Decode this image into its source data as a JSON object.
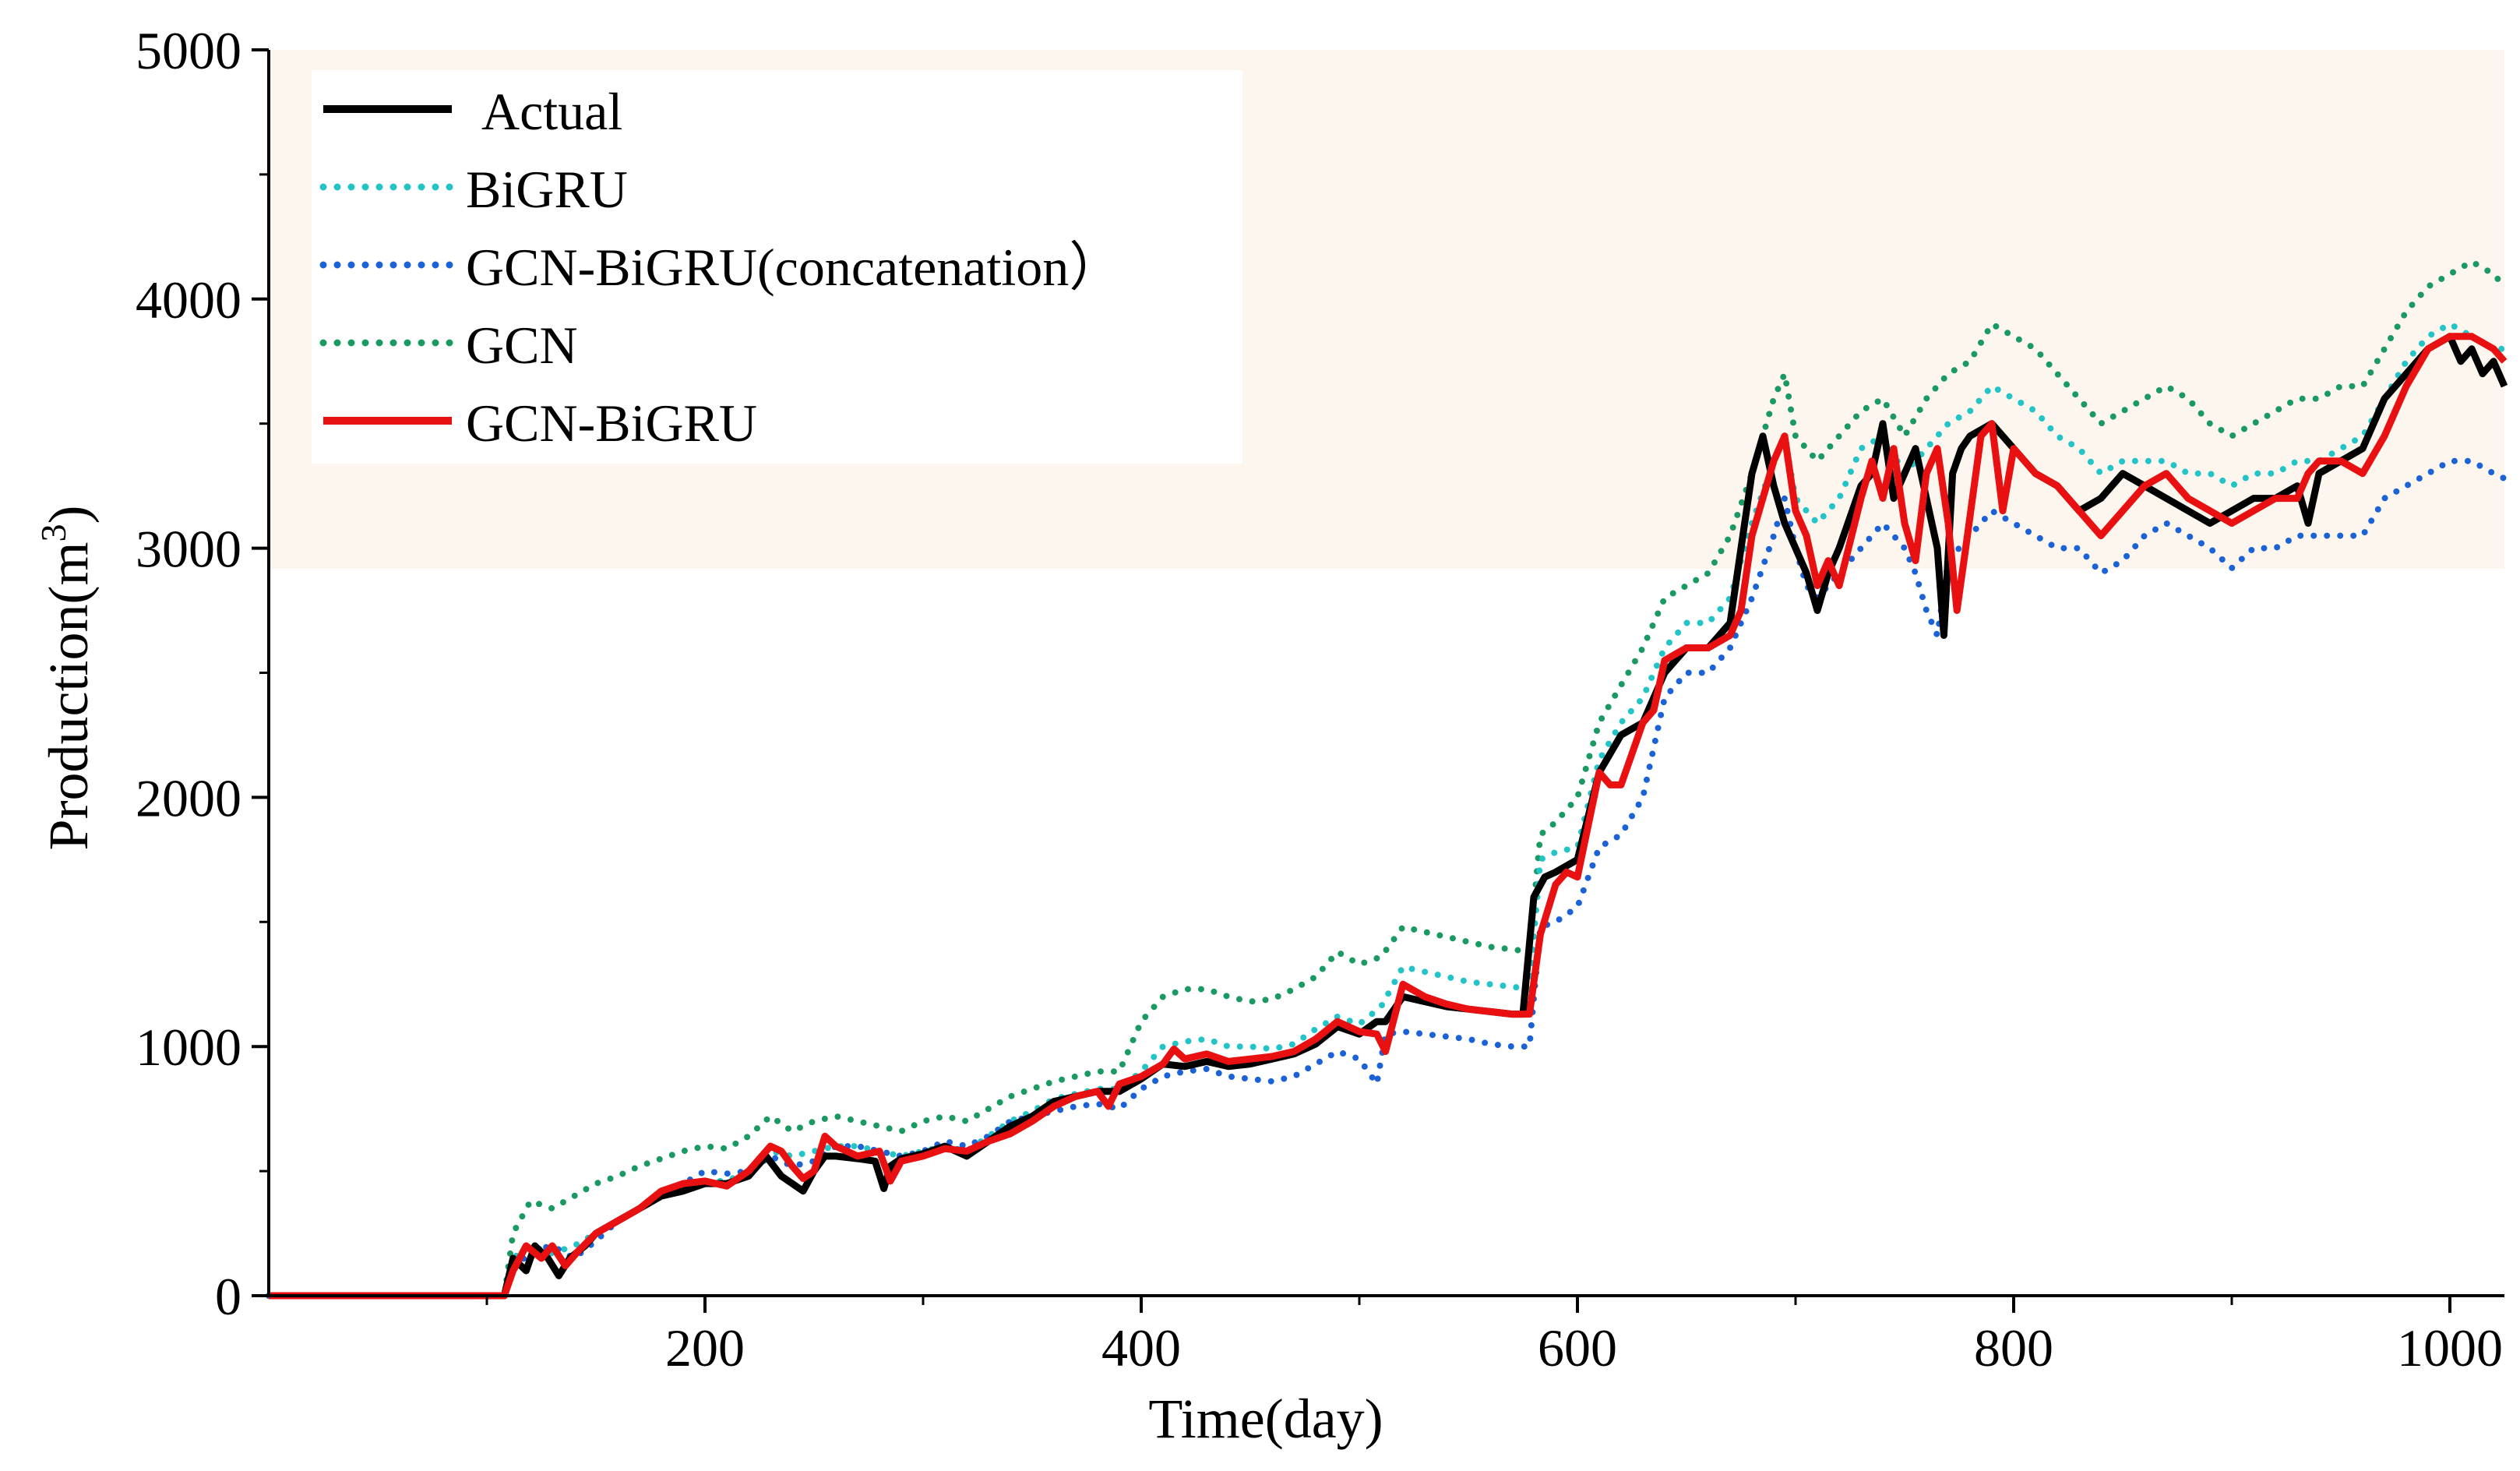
{
  "chart_data": {
    "type": "line",
    "title": "",
    "xlabel": "Time(day)",
    "ylabel_main": "Production(m",
    "ylabel_sup": "3",
    "ylabel_close": ")",
    "xlim": [
      0,
      1025
    ],
    "ylim": [
      0,
      5000
    ],
    "xticks": [
      200,
      400,
      600,
      800,
      1000
    ],
    "yticks": [
      0,
      1000,
      2000,
      3000,
      4000,
      5000
    ],
    "grid": false,
    "legend_position": "top-left",
    "series": [
      {
        "name": "Actual",
        "color": "#000000",
        "style": "solid",
        "x": [
          0,
          100,
          108,
          112,
          118,
          122,
          128,
          133,
          138,
          145,
          150,
          160,
          170,
          180,
          190,
          200,
          210,
          220,
          228,
          235,
          240,
          245,
          250,
          255,
          260,
          270,
          278,
          282,
          285,
          290,
          300,
          310,
          320,
          330,
          340,
          350,
          360,
          370,
          380,
          390,
          400,
          410,
          420,
          430,
          440,
          450,
          460,
          470,
          480,
          490,
          500,
          508,
          512,
          520,
          530,
          540,
          550,
          560,
          570,
          575,
          580,
          585,
          590,
          600,
          610,
          620,
          630,
          640,
          650,
          660,
          670,
          675,
          680,
          685,
          690,
          695,
          700,
          705,
          710,
          715,
          720,
          730,
          735,
          740,
          745,
          750,
          755,
          760,
          765,
          768,
          772,
          776,
          780,
          790,
          800,
          810,
          820,
          830,
          840,
          845,
          850,
          860,
          870,
          880,
          890,
          900,
          910,
          920,
          930,
          935,
          940,
          950,
          960,
          970,
          980,
          990,
          1000,
          1005,
          1010,
          1015,
          1020,
          1025
        ],
        "values": [
          0,
          0,
          0,
          150,
          100,
          200,
          150,
          80,
          150,
          200,
          250,
          300,
          350,
          400,
          420,
          450,
          450,
          480,
          560,
          480,
          450,
          420,
          500,
          560,
          560,
          550,
          540,
          430,
          520,
          550,
          570,
          600,
          560,
          620,
          680,
          720,
          780,
          800,
          820,
          820,
          870,
          930,
          920,
          940,
          920,
          930,
          950,
          970,
          1010,
          1080,
          1050,
          1100,
          1100,
          1200,
          1180,
          1160,
          1150,
          1140,
          1130,
          1130,
          1600,
          1680,
          1700,
          1750,
          2100,
          2250,
          2300,
          2500,
          2600,
          2600,
          2700,
          3000,
          3300,
          3450,
          3250,
          3100,
          3000,
          2900,
          2750,
          2900,
          3000,
          3250,
          3300,
          3500,
          3200,
          3300,
          3400,
          3200,
          3000,
          2650,
          3300,
          3400,
          3450,
          3500,
          3400,
          3300,
          3250,
          3150,
          3200,
          3250,
          3300,
          3250,
          3200,
          3150,
          3100,
          3150,
          3200,
          3200,
          3250,
          3100,
          3300,
          3350,
          3400,
          3600,
          3700,
          3800,
          3850,
          3750,
          3800,
          3700,
          3750,
          3650
        ]
      },
      {
        "name": "BiGRU",
        "color": "#22c4c8",
        "style": "dotted",
        "x": [
          0,
          100,
          108,
          112,
          120,
          130,
          140,
          150,
          160,
          170,
          180,
          190,
          200,
          210,
          220,
          230,
          240,
          250,
          260,
          270,
          280,
          290,
          300,
          310,
          320,
          330,
          340,
          350,
          360,
          370,
          380,
          390,
          400,
          410,
          420,
          430,
          440,
          450,
          460,
          470,
          480,
          490,
          500,
          510,
          520,
          530,
          540,
          550,
          560,
          570,
          578,
          583,
          590,
          600,
          610,
          620,
          630,
          640,
          650,
          660,
          670,
          680,
          690,
          695,
          700,
          710,
          720,
          730,
          740,
          750,
          760,
          770,
          780,
          790,
          800,
          810,
          820,
          830,
          840,
          850,
          860,
          870,
          880,
          890,
          900,
          910,
          920,
          930,
          940,
          950,
          960,
          970,
          980,
          990,
          1000,
          1010,
          1020,
          1025
        ],
        "values": [
          0,
          0,
          0,
          150,
          200,
          170,
          200,
          250,
          300,
          350,
          400,
          430,
          460,
          460,
          500,
          580,
          560,
          580,
          600,
          600,
          580,
          560,
          580,
          600,
          580,
          640,
          700,
          740,
          790,
          810,
          830,
          830,
          900,
          1000,
          1020,
          1030,
          1000,
          1000,
          990,
          1010,
          1070,
          1120,
          1090,
          1160,
          1320,
          1300,
          1280,
          1260,
          1250,
          1240,
          1230,
          1750,
          1780,
          1800,
          2150,
          2300,
          2400,
          2600,
          2700,
          2700,
          2800,
          3100,
          3350,
          3450,
          3200,
          3100,
          3200,
          3400,
          3450,
          3300,
          3400,
          3500,
          3550,
          3650,
          3600,
          3550,
          3450,
          3400,
          3300,
          3350,
          3350,
          3350,
          3300,
          3300,
          3250,
          3300,
          3300,
          3350,
          3350,
          3400,
          3450,
          3600,
          3750,
          3850,
          3900,
          3850,
          3800,
          3800
        ]
      },
      {
        "name": "GCN-BiGRU(concatenation）",
        "color": "#1a62d6",
        "style": "dotted",
        "x": [
          0,
          100,
          108,
          112,
          120,
          130,
          140,
          150,
          160,
          170,
          180,
          190,
          200,
          210,
          220,
          230,
          240,
          250,
          260,
          270,
          280,
          290,
          300,
          310,
          320,
          330,
          340,
          350,
          360,
          370,
          380,
          390,
          400,
          410,
          420,
          430,
          440,
          450,
          460,
          470,
          480,
          490,
          500,
          508,
          512,
          520,
          530,
          540,
          550,
          560,
          570,
          578,
          583,
          590,
          600,
          610,
          620,
          630,
          640,
          650,
          660,
          670,
          680,
          690,
          695,
          700,
          705,
          710,
          720,
          730,
          740,
          750,
          755,
          760,
          765,
          770,
          780,
          790,
          800,
          810,
          820,
          830,
          840,
          850,
          860,
          870,
          880,
          890,
          900,
          910,
          920,
          930,
          940,
          950,
          960,
          970,
          980,
          990,
          1000,
          1010,
          1020,
          1025
        ],
        "values": [
          0,
          0,
          0,
          100,
          180,
          200,
          150,
          220,
          300,
          350,
          400,
          450,
          500,
          490,
          500,
          560,
          520,
          540,
          600,
          600,
          580,
          560,
          580,
          620,
          600,
          640,
          700,
          720,
          740,
          760,
          770,
          750,
          830,
          880,
          900,
          910,
          880,
          870,
          860,
          880,
          930,
          980,
          950,
          850,
          1050,
          1060,
          1050,
          1040,
          1030,
          1010,
          1000,
          1000,
          1480,
          1500,
          1560,
          1800,
          1850,
          2000,
          2400,
          2500,
          2500,
          2600,
          2800,
          3050,
          3200,
          3000,
          2850,
          2800,
          2900,
          3000,
          3100,
          3000,
          2900,
          2750,
          2650,
          2950,
          3050,
          3150,
          3100,
          3050,
          3000,
          3000,
          2900,
          2950,
          3050,
          3100,
          3050,
          3000,
          2920,
          3000,
          3000,
          3050,
          3050,
          3050,
          3050,
          3200,
          3250,
          3300,
          3350,
          3350,
          3300,
          3280
        ]
      },
      {
        "name": "GCN",
        "color": "#1a9a62",
        "style": "dotted",
        "x": [
          0,
          100,
          108,
          112,
          120,
          130,
          140,
          150,
          160,
          170,
          180,
          190,
          200,
          210,
          220,
          230,
          240,
          250,
          260,
          270,
          280,
          290,
          300,
          310,
          320,
          330,
          340,
          350,
          360,
          370,
          380,
          390,
          400,
          410,
          420,
          430,
          440,
          450,
          460,
          470,
          480,
          490,
          500,
          510,
          520,
          530,
          540,
          550,
          560,
          570,
          578,
          583,
          590,
          600,
          610,
          620,
          630,
          640,
          650,
          660,
          670,
          680,
          690,
          695,
          700,
          710,
          720,
          730,
          740,
          750,
          760,
          770,
          780,
          790,
          800,
          810,
          820,
          830,
          840,
          850,
          860,
          870,
          880,
          890,
          900,
          910,
          920,
          930,
          940,
          950,
          960,
          970,
          980,
          990,
          1000,
          1010,
          1020,
          1025
        ],
        "values": [
          0,
          0,
          0,
          250,
          380,
          350,
          400,
          450,
          480,
          520,
          550,
          580,
          600,
          590,
          640,
          720,
          660,
          700,
          720,
          700,
          680,
          660,
          700,
          720,
          700,
          750,
          800,
          830,
          860,
          880,
          900,
          900,
          1100,
          1200,
          1230,
          1230,
          1200,
          1180,
          1190,
          1230,
          1280,
          1380,
          1330,
          1360,
          1480,
          1460,
          1440,
          1420,
          1400,
          1390,
          1380,
          1850,
          1900,
          2000,
          2300,
          2450,
          2600,
          2800,
          2850,
          2900,
          3050,
          3300,
          3600,
          3700,
          3450,
          3350,
          3450,
          3550,
          3600,
          3450,
          3600,
          3700,
          3750,
          3900,
          3850,
          3800,
          3700,
          3600,
          3500,
          3550,
          3600,
          3650,
          3600,
          3500,
          3450,
          3500,
          3550,
          3600,
          3600,
          3650,
          3650,
          3800,
          3950,
          4050,
          4100,
          4150,
          4100,
          4050
        ]
      },
      {
        "name": "GCN-BiGRU",
        "color": "#e81010",
        "style": "solid",
        "x": [
          0,
          100,
          108,
          112,
          118,
          125,
          130,
          136,
          142,
          150,
          160,
          170,
          180,
          190,
          200,
          210,
          220,
          230,
          235,
          240,
          245,
          250,
          255,
          260,
          270,
          280,
          285,
          290,
          300,
          310,
          320,
          330,
          340,
          350,
          360,
          370,
          380,
          385,
          390,
          400,
          410,
          415,
          420,
          430,
          440,
          450,
          460,
          470,
          480,
          490,
          500,
          508,
          512,
          520,
          530,
          540,
          550,
          560,
          570,
          578,
          583,
          590,
          595,
          600,
          610,
          615,
          620,
          630,
          635,
          640,
          650,
          660,
          670,
          675,
          680,
          685,
          690,
          695,
          700,
          705,
          710,
          715,
          720,
          730,
          735,
          740,
          745,
          750,
          755,
          760,
          765,
          770,
          774,
          778,
          785,
          790,
          795,
          800,
          810,
          820,
          830,
          840,
          845,
          850,
          860,
          870,
          880,
          890,
          900,
          910,
          920,
          930,
          935,
          940,
          950,
          960,
          970,
          980,
          990,
          1000,
          1010,
          1020,
          1025
        ],
        "values": [
          0,
          0,
          0,
          100,
          200,
          150,
          200,
          120,
          180,
          250,
          300,
          350,
          420,
          450,
          460,
          440,
          500,
          600,
          580,
          520,
          470,
          500,
          640,
          600,
          560,
          580,
          460,
          540,
          560,
          590,
          580,
          620,
          650,
          700,
          760,
          800,
          820,
          760,
          850,
          880,
          930,
          990,
          950,
          970,
          940,
          950,
          960,
          980,
          1030,
          1100,
          1060,
          1050,
          980,
          1250,
          1200,
          1170,
          1150,
          1140,
          1130,
          1130,
          1450,
          1650,
          1700,
          1680,
          2100,
          2050,
          2050,
          2300,
          2350,
          2550,
          2600,
          2600,
          2650,
          2750,
          3050,
          3200,
          3350,
          3450,
          3150,
          3050,
          2850,
          2950,
          2850,
          3200,
          3350,
          3200,
          3400,
          3100,
          2950,
          3300,
          3400,
          3100,
          2750,
          3000,
          3450,
          3500,
          3150,
          3400,
          3300,
          3250,
          3150,
          3050,
          3100,
          3150,
          3250,
          3300,
          3200,
          3150,
          3100,
          3150,
          3200,
          3200,
          3300,
          3350,
          3350,
          3300,
          3450,
          3650,
          3800,
          3850,
          3850,
          3800,
          3750
        ]
      }
    ]
  }
}
